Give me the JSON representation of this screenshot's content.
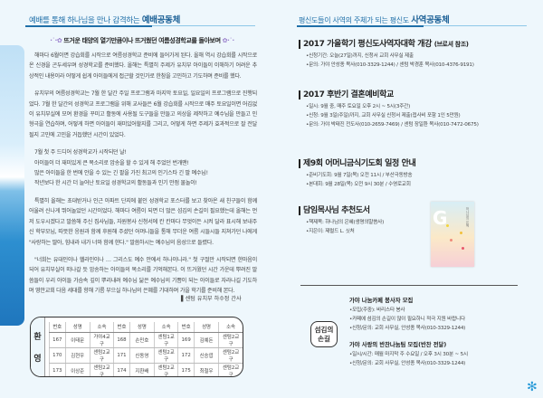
{
  "left": {
    "header_pre": "예배를 통해 하나님을 만나 감격하는",
    "header_main": "예배공동체",
    "subtitle": "뜨거운 태양의 열기만큼이나 뜨거웠던 여름성경학교를 돌아보며",
    "paragraphs": [
      "해마다 6월이면 강습회를 시작으로 여름성경학교 준비에 들어가게 된다. 올해 역시 강습회를 시작으로 온 신경을 곤두세우며 성경학교를 준비했다. 올해는 특별히 주제가 유치부 아이들이 이해하기 어려운 추상적인 내용이라 어떻게 쉽게 아이들에게 접근할 것인가로 한참을 고민하고 기도하며 준비를 했다.",
      "유치부의 여름성경학교는 7월 한 달간 주일 프로그램과 마지막 토요일, 일요일의 프로그램으로 진행되었다. 7월 한 달간의 성경학교 프로그램을 위해 교사들은 6월 강습회를 시작으로 매주 토요일이면 어김없이 유치부실에 모여 환경을 꾸미고 활동에 사용될 도구들을 만들고 의상을 제작하고 예수님을 만들고 인형극을 연습하며, 어떻게 하면 아이들이 재미있어할지를 그리고, 어떻게 하면 주제가 효과적으로 잘 전달될지 고민에 고민을 거듭했던 시간이 있었다."
    ],
    "exclaims": [
      "7월 첫 주 드디어 성경학교가 시작되던 날!",
      "아이들이 더 재미있게 큰 목소리로 암송을 할 수 있게 해 주었던 번개맨!",
      "많은 아이들을 한 번에 안을 수 있는 긴 팔을 가진 최고의 인기스타 긴 팔 예수님!",
      "작년보다 한 시간 더 늘어난 토요일 성경학교의 활동들과 인기 만점 물놀이!"
    ],
    "paragraphs2": [
      "특별히 올해는 초대받거나 인근 아파트 단지에 붙인 성경학교 포스터를 보고 찾아온 새 친구들이 함께 어울려 신나게 뛰어놀았던 시간이었다. 해마다 여름이 되면 더 많은 섬김의 손길이 필요했는데 올해는 먼저 도우시겠다고 말씀해 주신 집사님들, 자원봉사 신청서에 칸 칸마다 무엇이든 시켜 달라 표시해 보내주신 학부모님, 따뜻한 응원과 함께 후원해 주셨던 어머니들을 통해 무더운 여름 시들시들 지쳐가던 나에게 \"사랑하는 딸아, 힘내라 내가 너와 함께 한다.\" 말씀하시는 예수님의 음성으로 들렸다.",
      "\"너희는 유대인이나 헬라인이나 … 그리스도 예수 안에서 하나이니라.\" 첫 구절만 시작되면 한마음이 되어 유치부실이 떠나갈 듯 암송하는 아이들의 목소리를 기억해본다. 이 뜨거웠던 시간 가운데 뿌려진 말씀들이 우리 아이들 가슴속 깊이 뿌리내려 예수님 닮은 예수님의 기쁨이 되는 아이들로 자라나길 기도하며 영안교회 다음 세대를 향해 기름 부으실 하나님의 은혜를 기대하며 가을 학기를 준비해 본다."
    ],
    "signature": "▌센텀 유치부 하수정 간사",
    "welcome": {
      "label": [
        "환",
        "영"
      ],
      "headers": [
        "번호",
        "성명",
        "소속"
      ],
      "rows": [
        [
          "167",
          "이태문",
          "가야4교구",
          "168",
          "손민호",
          "센텀1교구",
          "169",
          "김예돈",
          "센텀2교구"
        ],
        [
          "170",
          "김현우",
          "센텀2교구",
          "171",
          "신동영",
          "센텀2교구",
          "172",
          "신승엽",
          "센텀2교구"
        ],
        [
          "173",
          "이상준",
          "센텀2교구",
          "174",
          "지환배",
          "센텀2교구",
          "175",
          "최철우",
          "센텀2교구"
        ],
        [
          "176",
          "김동익",
          "센텀3교구",
          "",
          "",
          "",
          "",
          "",
          ""
        ]
      ]
    }
  },
  "right": {
    "header_pre": "평신도들이 사역의 주체가 되는 평신도",
    "header_main": "사역공동체",
    "sections": [
      {
        "title": "2017 가을학기 평신도사역자대학 개강",
        "note": "(브로셔 참조)",
        "items": [
          "•신청기간: 오늘(27일)까지, 신청서 교회 사무실 제출",
          "•문의: 가야 안성종 목사(010-3329-1244) / 센텀 박경훈 목사(010-4376-9191)"
        ]
      },
      {
        "title": "2017 후반기 결혼예비학교",
        "note": "",
        "items": [
          "•일시: 9월 중, 매주 토요일 오후 2시 ~ 5시(3주간)",
          "•신청: 9월 3일(주일)까지, 교회 사무실 신청서 제출(접사비 포함 1인 5만원)",
          "•문의: 가야 박태진 전도사(010-2659-7469) / 센텀 장일환 목사(010-7472-0675)"
        ]
      },
      {
        "title": "제9회 어머니금식기도회 일정 안내",
        "note": "",
        "items": [
          "•준비기도회: 9월 7일(목) 오전 11시 / 부산극동방송",
          "•본대회: 9월 28일(목) 오전 9시 30분 / 수영로교회"
        ]
      },
      {
        "title": "담임목사님 추천도서",
        "note": "",
        "items": [
          "•책제목: 하나님의 은혜(생명의말씀사)",
          "•지은이: 제럴드 L. 싯처"
        ]
      }
    ],
    "book": {
      "cover_letter": "G",
      "spine": "하나님의 은혜"
    },
    "service": {
      "badge": "섬김의 손길",
      "groups": [
        {
          "title": "가야 나눔카페 봉사자 모집",
          "items": [
            "•모집(주중): 바리스타 봉사",
            "•카페에 섬김의 손길이 많이 필요하니 적극 지원 바랍니다",
            "•신청/문의: 교회 사무실, 안성종 목사(010-3329-1244)"
          ]
        },
        {
          "title": "가야 사랑의 반찬나눔팀 모집(반찬 전달)",
          "items": [
            "•일시/시간: 매월 마지막 주 수요일 / 오후 3시 30분 ~ 5시",
            "•신청/문의: 교회 사무실, 안성종 목사(010-3329-1244)"
          ]
        }
      ]
    }
  },
  "colors": {
    "background": "#eef7fc",
    "accent": "#1f6fa8"
  }
}
